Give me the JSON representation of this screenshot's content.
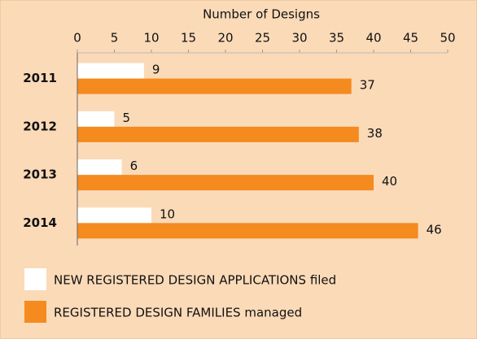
{
  "chart_data": {
    "type": "barh",
    "xlabel": "Number of Designs",
    "categories": [
      "2011",
      "2012",
      "2013",
      "2014"
    ],
    "series": [
      {
        "name": "NEW REGISTERED DESIGN APPLICATIONS filed",
        "color": "#ffffff",
        "values": [
          9,
          5,
          6,
          10
        ]
      },
      {
        "name": "REGISTERED DESIGN FAMILIES managed",
        "color": "#f58a1f",
        "values": [
          37,
          38,
          40,
          46
        ]
      }
    ],
    "xlim": [
      0,
      50
    ],
    "xticks": [
      0,
      5,
      10,
      15,
      20,
      25,
      30,
      35,
      40,
      45,
      50
    ],
    "legend": "bottom-left"
  }
}
